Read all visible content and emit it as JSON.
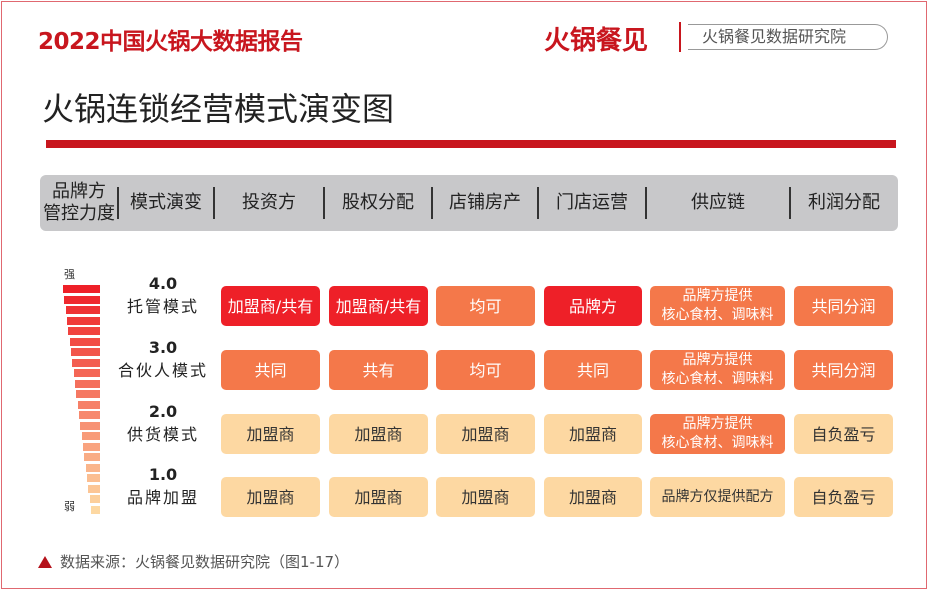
{
  "header": {
    "report_title": "2022中国火锅大数据报告",
    "brand": "火锅餐见",
    "institute": "火锅餐见数据研究院"
  },
  "page_title": "火锅连锁经营模式演变图",
  "columns": [
    "品牌方\n管控力度",
    "模式演变",
    "投资方",
    "股权分配",
    "店铺房产",
    "门店运营",
    "供应链",
    "利润分配"
  ],
  "scale": {
    "strong": "强",
    "weak": "弱"
  },
  "colors": {
    "dark_red": "#ee2028",
    "orange": "#f4784a",
    "light": "#fdd8a2",
    "accent": "#c8161e"
  },
  "rows": [
    {
      "level": "4.0",
      "mode": "托管模式",
      "cells": [
        {
          "text": "加盟商/共有",
          "tone": "dark_red"
        },
        {
          "text": "加盟商/共有",
          "tone": "dark_red"
        },
        {
          "text": "均可",
          "tone": "orange"
        },
        {
          "text": "品牌方",
          "tone": "dark_red"
        },
        {
          "text": "品牌方提供\n核心食材、调味料",
          "tone": "orange"
        },
        {
          "text": "共同分润",
          "tone": "orange"
        }
      ]
    },
    {
      "level": "3.0",
      "mode": "合伙人模式",
      "cells": [
        {
          "text": "共同",
          "tone": "orange"
        },
        {
          "text": "共有",
          "tone": "orange"
        },
        {
          "text": "均可",
          "tone": "orange"
        },
        {
          "text": "共同",
          "tone": "orange"
        },
        {
          "text": "品牌方提供\n核心食材、调味料",
          "tone": "orange"
        },
        {
          "text": "共同分润",
          "tone": "orange"
        }
      ]
    },
    {
      "level": "2.0",
      "mode": "供货模式",
      "cells": [
        {
          "text": "加盟商",
          "tone": "light"
        },
        {
          "text": "加盟商",
          "tone": "light"
        },
        {
          "text": "加盟商",
          "tone": "light"
        },
        {
          "text": "加盟商",
          "tone": "light"
        },
        {
          "text": "品牌方提供\n核心食材、调味料",
          "tone": "orange"
        },
        {
          "text": "自负盈亏",
          "tone": "light"
        }
      ]
    },
    {
      "level": "1.0",
      "mode": "品牌加盟",
      "cells": [
        {
          "text": "加盟商",
          "tone": "light"
        },
        {
          "text": "加盟商",
          "tone": "light"
        },
        {
          "text": "加盟商",
          "tone": "light"
        },
        {
          "text": "加盟商",
          "tone": "light"
        },
        {
          "text": "品牌方仅提供配方",
          "tone": "light"
        },
        {
          "text": "自负盈亏",
          "tone": "light"
        }
      ]
    }
  ],
  "source": "数据来源：火锅餐见数据研究院（图1-17）"
}
